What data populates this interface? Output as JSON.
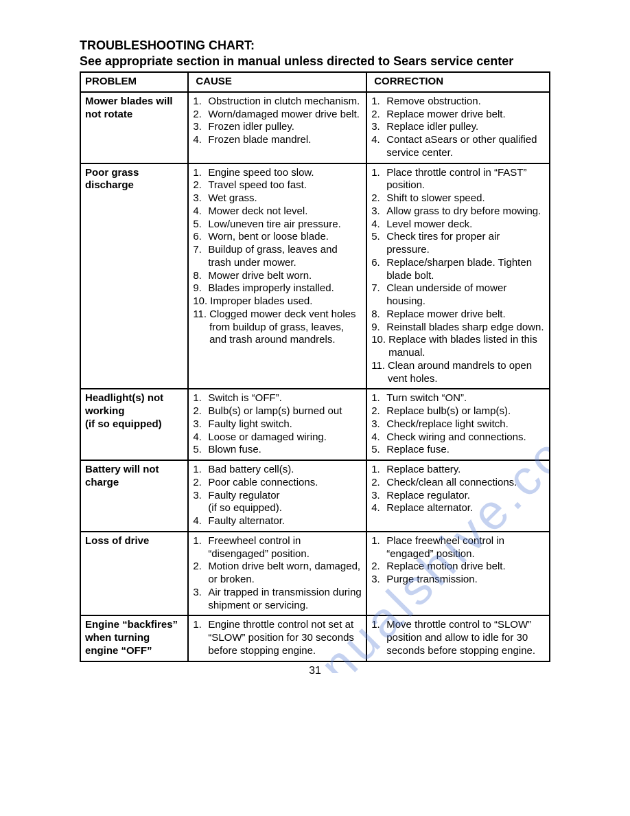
{
  "title": "TROUBLESHOOTING CHART:",
  "subtitle": "See appropriate section in manual unless directed to Sears service center",
  "headers": {
    "problem": "PROBLEM",
    "cause": "CAUSE",
    "correction": "CORRECTION"
  },
  "watermark_text": "manualshive.com",
  "watermark_color": "#5b7fd6",
  "page_number": "31",
  "rows": [
    {
      "problem": "Mower blades will not rotate",
      "causes": [
        "Obstruction in clutch mechanism.",
        "Worn/damaged mower drive belt.",
        "Frozen idler pulley.",
        "Frozen blade mandrel."
      ],
      "corrections": [
        "Remove obstruction.",
        "Replace mower drive belt.",
        "Replace idler pulley.",
        "Contact aSears or other qualified service center."
      ]
    },
    {
      "problem": "Poor grass discharge",
      "causes": [
        "Engine speed too slow.",
        "Travel speed too fast.",
        "Wet grass.",
        "Mower deck not level.",
        "Low/uneven tire air pressure.",
        "Worn, bent or loose blade.",
        "Buildup of grass, leaves and trash under mower.",
        "Mower drive belt worn.",
        "Blades improperly installed.",
        "Improper blades used.",
        "Clogged mower deck vent holes from buildup of grass, leaves, and trash around mandrels."
      ],
      "corrections": [
        "Place throttle control in “FAST” position.",
        "Shift to slower speed.",
        "Allow grass to dry before mowing.",
        "Level mower deck.",
        "Check tires for proper air pressure.",
        "Replace/sharpen blade. Tighten blade bolt.",
        "Clean underside of mower housing.",
        "Replace mower drive belt.",
        "Reinstall blades sharp edge down.",
        "Replace with blades listed in this manual.",
        "Clean around mandrels to open vent holes."
      ]
    },
    {
      "problem": "Headlight(s) not working\n(if so equipped)",
      "causes": [
        "Switch is “OFF”.",
        "Bulb(s) or lamp(s) burned out",
        "Faulty light switch.",
        "Loose or damaged wiring.",
        "Blown fuse."
      ],
      "corrections": [
        "Turn switch “ON”.",
        "Replace bulb(s) or lamp(s).",
        "Check/replace light switch.",
        "Check wiring and connections.",
        "Replace fuse."
      ]
    },
    {
      "problem": "Battery will not charge",
      "causes": [
        "Bad battery cell(s).",
        "Poor cable connections.",
        "Faulty regulator\n(if so equipped).",
        "Faulty alternator."
      ],
      "corrections": [
        "Replace battery.",
        "Check/clean all connections.",
        "Replace regulator.",
        "Replace alternator."
      ]
    },
    {
      "problem": "Loss of drive",
      "causes": [
        "Freewheel control in “disengaged” position.",
        "Motion drive belt worn, damaged, or broken.",
        "Air trapped in transmission during shipment or servicing."
      ],
      "corrections": [
        "Place freewheel control in “engaged” position.",
        "Replace motion drive belt.",
        "Purge transmission."
      ]
    },
    {
      "problem": "Engine “backfires” when turning engine “OFF”",
      "causes": [
        "Engine throttle control not set at “SLOW” position for 30 seconds before stopping engine."
      ],
      "corrections": [
        "Move throttle control to “SLOW” position and allow to idle for 30 seconds before stopping engine."
      ]
    }
  ]
}
